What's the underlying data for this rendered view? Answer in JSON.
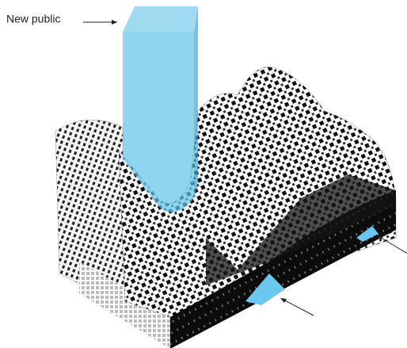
{
  "label": "New public"
}
